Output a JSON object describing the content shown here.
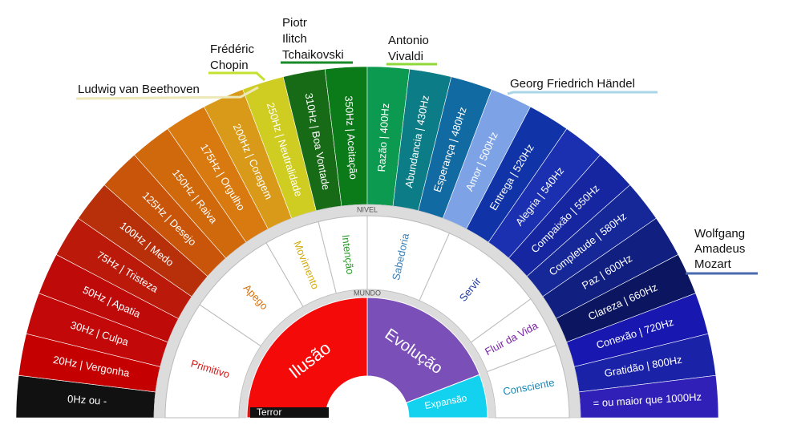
{
  "outer_ring": [
    "0Hz ou -",
    "20Hz | Vergonha",
    "30Hz | Culpa",
    "50Hz | Apatia",
    "75Hz | Tristeza",
    "100Hz | Medo",
    "125Hz | Desejo",
    "150Hz | Raiva",
    "175Hz | Orgulho",
    "200Hz | Coragem",
    "250Hz | Neutralidade",
    "310Hz | Boa Vontade",
    "350Hz | Aceitação",
    "Razão | 400Hz",
    "Abundancia | 430Hz",
    "Esperança | 480Hz",
    "Amor | 500Hz",
    "Entrega | 520Hz",
    "Alegria | 540Hz",
    "Compaixão | 550Hz",
    "Completude | 580Hz",
    "Paz | 600Hz",
    "Clareza | 660Hz",
    "Conexão | 720Hz",
    "Gratidão | 800Hz",
    "= ou maior que 1000Hz"
  ],
  "ring_labels": {
    "nivel": "NIVEL",
    "mundo": "MUNDO"
  },
  "middle_ring": [
    "Primitivo",
    "Apego",
    "Movimento",
    "Intenção",
    "Sabedoria",
    "Servir",
    "Fluir da Vida",
    "Consciente"
  ],
  "inner": {
    "ilusao": "Ilusão",
    "evolucao": "Evolução",
    "expansao": "Expansão",
    "terror": "Terror"
  },
  "composers": [
    {
      "lines": [
        "Ludwig van Beethoven"
      ]
    },
    {
      "lines": [
        "Frédéric",
        "Chopin"
      ]
    },
    {
      "lines": [
        "Piotr",
        "Ilitch",
        "Tchaikovski"
      ]
    },
    {
      "lines": [
        "Antonio",
        "Vivaldi"
      ]
    },
    {
      "lines": [
        "Georg Friedrich Händel"
      ]
    },
    {
      "lines": [
        "Wolfgang",
        "Amadeus",
        "Mozart"
      ]
    }
  ]
}
